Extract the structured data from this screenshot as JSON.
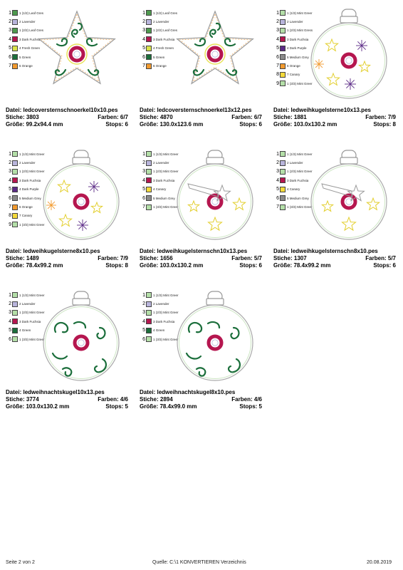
{
  "designs": [
    {
      "kind": "star",
      "variant": "big",
      "palette": [
        {
          "n": "1",
          "name": "1 (1/2) Leaf Gres",
          "color": "#4e9a4e"
        },
        {
          "n": "2",
          "name": "2 Lavender",
          "color": "#b9b5dc"
        },
        {
          "n": "3",
          "name": "1 (2/2) Leaf Gres",
          "color": "#4e9a4e"
        },
        {
          "n": "4",
          "name": "3 Dark Fuchsia",
          "color": "#b5164f"
        },
        {
          "n": "5",
          "name": "4 Fresh Green",
          "color": "#d9e34a"
        },
        {
          "n": "6",
          "name": "5 Green",
          "color": "#1b6e3b"
        },
        {
          "n": "7",
          "name": "6 Orange",
          "color": "#f29a2e"
        }
      ],
      "file_label": "Datei:",
      "file": "ledcoversternschnoerkel10x10.pes",
      "stitches_label": "Stiche:",
      "stitches": "3803",
      "colors_label": "Farben:",
      "colors": "6/7",
      "size_label": "Größe:",
      "size": "99.2x94.4 mm",
      "stops_label": "Stops:",
      "stops": "6"
    },
    {
      "kind": "star",
      "variant": "small",
      "palette": [
        {
          "n": "1",
          "name": "1 (1/2) Leaf Gres",
          "color": "#4e9a4e"
        },
        {
          "n": "2",
          "name": "2 Lavender",
          "color": "#b9b5dc"
        },
        {
          "n": "3",
          "name": "1 (2/2) Leaf Gres",
          "color": "#4e9a4e"
        },
        {
          "n": "4",
          "name": "3 Dark Fuchsia",
          "color": "#b5164f"
        },
        {
          "n": "5",
          "name": "4 Fresh Green",
          "color": "#d9e34a"
        },
        {
          "n": "6",
          "name": "5 Green",
          "color": "#1b6e3b"
        },
        {
          "n": "7",
          "name": "6 Orange",
          "color": "#f29a2e"
        }
      ],
      "file_label": "Datei:",
      "file": "ledcoversternschnoerkel13x12.pes",
      "stitches_label": "Stiche:",
      "stitches": "4870",
      "colors_label": "Farben:",
      "colors": "6/7",
      "size_label": "Größe:",
      "size": "130.0x123.6 mm",
      "stops_label": "Stops:",
      "stops": "6"
    },
    {
      "kind": "ball-stars",
      "palette": [
        {
          "n": "1",
          "name": "1 (1/3) Mint Greer",
          "color": "#b4dfa8"
        },
        {
          "n": "2",
          "name": "2 Lavender",
          "color": "#b9b5dc"
        },
        {
          "n": "3",
          "name": "1 (2/3) Mint Gress",
          "color": "#b4dfa8"
        },
        {
          "n": "4",
          "name": "3 Dark Fuchsia",
          "color": "#b5164f"
        },
        {
          "n": "5",
          "name": "4 Dark Purple",
          "color": "#5b2a86"
        },
        {
          "n": "6",
          "name": "5 Medium Grey",
          "color": "#8a8a8a"
        },
        {
          "n": "7",
          "name": "6 Orange",
          "color": "#f29a2e"
        },
        {
          "n": "8",
          "name": "7 Canary",
          "color": "#f4da3b"
        },
        {
          "n": "9",
          "name": "1 (3/3) Mint Greer",
          "color": "#b4dfa8"
        }
      ],
      "file_label": "Datei:",
      "file": "ledweihkugelsterne10x13.pes",
      "stitches_label": "Stiche:",
      "stitches": "1881",
      "colors_label": "Farben:",
      "colors": "7/9",
      "size_label": "Größe:",
      "size": "103.0x130.2 mm",
      "stops_label": "Stops:",
      "stops": "8"
    },
    {
      "kind": "ball-stars",
      "palette": [
        {
          "n": "1",
          "name": "1 (1/3) Mint Greer",
          "color": "#b4dfa8"
        },
        {
          "n": "2",
          "name": "2 Lavender",
          "color": "#b9b5dc"
        },
        {
          "n": "3",
          "name": "1 (2/3) Mint Greer",
          "color": "#b4dfa8"
        },
        {
          "n": "4",
          "name": "3 Dark Fuchsia",
          "color": "#b5164f"
        },
        {
          "n": "5",
          "name": "4 Dark Purple",
          "color": "#5b2a86"
        },
        {
          "n": "6",
          "name": "5 Medium Grey",
          "color": "#8a8a8a"
        },
        {
          "n": "7",
          "name": "6 Orange",
          "color": "#f29a2e"
        },
        {
          "n": "8",
          "name": "7 Canary",
          "color": "#f4da3b"
        },
        {
          "n": "9",
          "name": "1 (3/3) Mint Greer",
          "color": "#b4dfa8"
        }
      ],
      "file_label": "Datei:",
      "file": "ledweihkugelsterne8x10.pes",
      "stitches_label": "Stiche:",
      "stitches": "1489",
      "colors_label": "Farben:",
      "colors": "7/9",
      "size_label": "Größe:",
      "size": "78.4x99.2 mm",
      "stops_label": "Stops:",
      "stops": "8"
    },
    {
      "kind": "ball-shooting",
      "palette": [
        {
          "n": "1",
          "name": "1 (1/3) Mint Greer",
          "color": "#b4dfa8"
        },
        {
          "n": "2",
          "name": "2 Lavender",
          "color": "#b9b5dc"
        },
        {
          "n": "3",
          "name": "1 (2/3) Mint Greer",
          "color": "#b4dfa8"
        },
        {
          "n": "4",
          "name": "3 Dark Fuchsia",
          "color": "#b5164f"
        },
        {
          "n": "5",
          "name": "4 Canary",
          "color": "#f4da3b"
        },
        {
          "n": "6",
          "name": "5 Medium Grey",
          "color": "#8a8a8a"
        },
        {
          "n": "7",
          "name": "1 (3/3) Mint Greer",
          "color": "#b4dfa8"
        }
      ],
      "file_label": "Datei:",
      "file": "ledweihkugelsternschn10x13.pes",
      "stitches_label": "Stiche:",
      "stitches": "1656",
      "colors_label": "Farben:",
      "colors": "5/7",
      "size_label": "Größe:",
      "size": "103.0x130.2 mm",
      "stops_label": "Stops:",
      "stops": "6"
    },
    {
      "kind": "ball-shooting",
      "palette": [
        {
          "n": "1",
          "name": "1 (1/3) Mint Greer",
          "color": "#b4dfa8"
        },
        {
          "n": "2",
          "name": "2 Lavender",
          "color": "#b9b5dc"
        },
        {
          "n": "3",
          "name": "1 (2/3) Mint Greer",
          "color": "#b4dfa8"
        },
        {
          "n": "4",
          "name": "3 Dark Fuchsia",
          "color": "#b5164f"
        },
        {
          "n": "5",
          "name": "4 Canary",
          "color": "#f4da3b"
        },
        {
          "n": "6",
          "name": "5 Medium Grey",
          "color": "#8a8a8a"
        },
        {
          "n": "7",
          "name": "1 (3/3) Mint Greer",
          "color": "#b4dfa8"
        }
      ],
      "file_label": "Datei:",
      "file": "ledweihkugelsternschn8x10.pes",
      "stitches_label": "Stiche:",
      "stitches": "1307",
      "colors_label": "Farben:",
      "colors": "5/7",
      "size_label": "Größe:",
      "size": "78.4x99.2 mm",
      "stops_label": "Stops:",
      "stops": "6"
    },
    {
      "kind": "ball-swirls",
      "palette": [
        {
          "n": "1",
          "name": "1 (1/3) Mint Greer",
          "color": "#b4dfa8"
        },
        {
          "n": "2",
          "name": "2 Lavender",
          "color": "#b9b5dc"
        },
        {
          "n": "3",
          "name": "1 (2/3) Mint Greer",
          "color": "#b4dfa8"
        },
        {
          "n": "4",
          "name": "3 Dark Fuchsia",
          "color": "#b5164f"
        },
        {
          "n": "5",
          "name": "4 Green",
          "color": "#1b6e3b"
        },
        {
          "n": "6",
          "name": "1 (3/3) Mint Greer",
          "color": "#b4dfa8"
        }
      ],
      "file_label": "Datei:",
      "file": "ledweihnachtskugel10x13.pes",
      "stitches_label": "Stiche:",
      "stitches": "3774",
      "colors_label": "Farben:",
      "colors": "4/6",
      "size_label": "Größe:",
      "size": "103.0x130.2 mm",
      "stops_label": "Stops:",
      "stops": "5"
    },
    {
      "kind": "ball-swirls",
      "palette": [
        {
          "n": "1",
          "name": "1 (1/3) Mint Greer",
          "color": "#b4dfa8"
        },
        {
          "n": "2",
          "name": "2 Lavender",
          "color": "#b9b5dc"
        },
        {
          "n": "3",
          "name": "1 (2/3) Mint Greer",
          "color": "#b4dfa8"
        },
        {
          "n": "4",
          "name": "3 Dark Fuchsia",
          "color": "#b5164f"
        },
        {
          "n": "5",
          "name": "4 Green",
          "color": "#1b6e3b"
        },
        {
          "n": "6",
          "name": "1 (3/3) Mint Greer",
          "color": "#b4dfa8"
        }
      ],
      "file_label": "Datei:",
      "file": "ledweihnachtskugel8x10.pes",
      "stitches_label": "Stiche:",
      "stitches": "2894",
      "colors_label": "Farben:",
      "colors": "4/6",
      "size_label": "Größe:",
      "size": "78.4x99.0 mm",
      "stops_label": "Stops:",
      "stops": "5"
    }
  ],
  "footer": {
    "page": "Seite 2 von 2",
    "source": "Quelle: C:\\1 KONVERTIEREN Verzeichnis",
    "date": "20.08.2019"
  }
}
